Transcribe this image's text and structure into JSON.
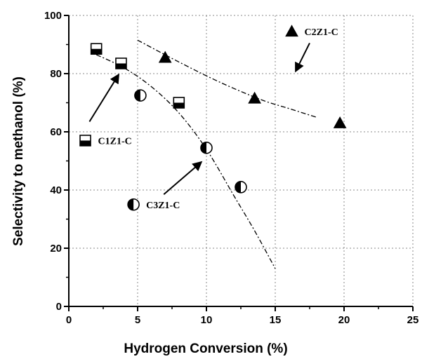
{
  "chart_data": {
    "type": "scatter",
    "title": "",
    "xlabel": "Hydrogen Conversion (%)",
    "ylabel": "Selectivity to methanol (%)",
    "xlim": [
      0,
      25
    ],
    "ylim": [
      0,
      100
    ],
    "x_ticks": [
      "0",
      "5",
      "10",
      "15",
      "20",
      "25"
    ],
    "y_ticks": [
      "0",
      "20",
      "40",
      "60",
      "80",
      "100"
    ],
    "grid": true,
    "series": [
      {
        "name": "C1Z1-C",
        "marker": "half-filled-square",
        "color": "#000000",
        "x": [
          2.0,
          3.8,
          8.0
        ],
        "y": [
          88.5,
          83.5,
          70.0
        ]
      },
      {
        "name": "C2Z1-C",
        "marker": "filled-triangle",
        "color": "#000000",
        "x": [
          7.0,
          13.5,
          19.7
        ],
        "y": [
          85.5,
          71.5,
          63.0
        ]
      },
      {
        "name": "C3Z1-C",
        "marker": "half-filled-circle",
        "color": "#000000",
        "x": [
          5.2,
          10.0,
          12.5
        ],
        "y": [
          72.5,
          54.5,
          41.0
        ]
      }
    ],
    "trend_lines": [
      {
        "style": "dash-dot",
        "x": [
          2.0,
          4.0,
          6.0,
          8.0,
          10.0,
          12.0,
          13.5,
          15.0
        ],
        "y": [
          86.5,
          82.0,
          75.5,
          66.5,
          54.0,
          38.0,
          26.0,
          13.0
        ]
      },
      {
        "style": "dash-dot",
        "x": [
          5.0,
          8.0,
          11.0,
          14.0,
          16.0,
          18.0
        ],
        "y": [
          91.5,
          84.0,
          77.0,
          71.0,
          68.0,
          65.0
        ]
      }
    ],
    "annotations": [
      {
        "label": "C1Z1-C",
        "marker": "half-filled-square",
        "arrow_from": [
          1.5,
          63.5
        ],
        "arrow_to": [
          3.6,
          79.5
        ],
        "label_at": [
          1.2,
          57.0
        ]
      },
      {
        "label": "C2Z1-C",
        "marker": "filled-triangle",
        "arrow_from": [
          17.5,
          90.5
        ],
        "arrow_to": [
          16.5,
          81.0
        ],
        "label_at": [
          16.2,
          94.5
        ]
      },
      {
        "label": "C3Z1-C",
        "marker": "half-filled-circle",
        "arrow_from": [
          6.9,
          38.5
        ],
        "arrow_to": [
          9.6,
          49.5
        ],
        "label_at": [
          4.7,
          35.0
        ]
      }
    ]
  }
}
